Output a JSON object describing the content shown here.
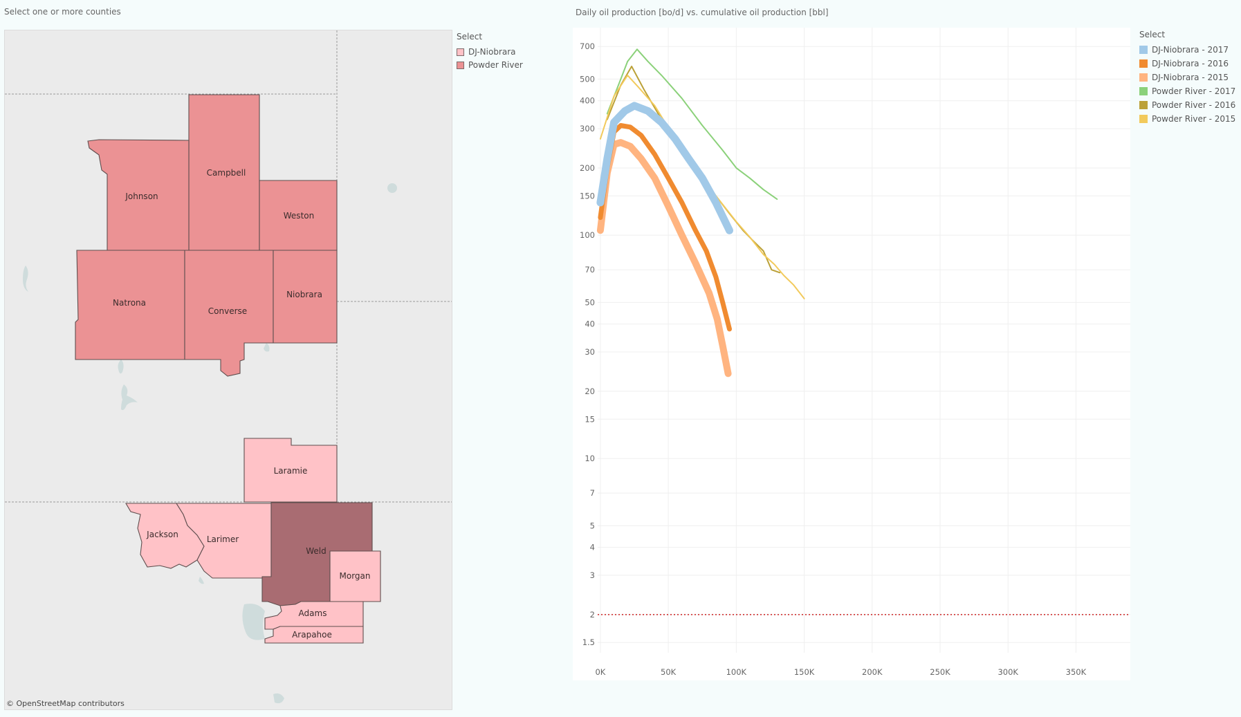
{
  "map": {
    "title": "Select one or more counties",
    "credit": "© OpenStreetMap contributors",
    "legend": {
      "title": "Select",
      "items": [
        {
          "label": "DJ-Niobrara",
          "color": "#ffc2c7"
        },
        {
          "label": "Powder River",
          "color": "#eb9294"
        }
      ]
    },
    "counties": [
      {
        "name": "Campbell",
        "basin": "Powder River"
      },
      {
        "name": "Johnson",
        "basin": "Powder River"
      },
      {
        "name": "Weston",
        "basin": "Powder River"
      },
      {
        "name": "Natrona",
        "basin": "Powder River"
      },
      {
        "name": "Converse",
        "basin": "Powder River"
      },
      {
        "name": "Niobrara",
        "basin": "Powder River"
      },
      {
        "name": "Laramie",
        "basin": "DJ-Niobrara"
      },
      {
        "name": "Jackson",
        "basin": "DJ-Niobrara"
      },
      {
        "name": "Larimer",
        "basin": "DJ-Niobrara"
      },
      {
        "name": "Weld",
        "basin": "DJ-Niobrara",
        "selected": true
      },
      {
        "name": "Morgan",
        "basin": "DJ-Niobrara"
      },
      {
        "name": "Adams",
        "basin": "DJ-Niobrara"
      },
      {
        "name": "Arapahoe",
        "basin": "DJ-Niobrara"
      }
    ],
    "colors": {
      "background": "#ebebeb",
      "selected": "#a96c72",
      "border": "#5e4e4e"
    }
  },
  "chart": {
    "title": "Daily oil production [bo/d] vs. cumulative oil production [bbl]",
    "legend_title": "Select"
  },
  "chart_data": {
    "type": "line",
    "title": "Daily oil production [bo/d] vs. cumulative oil production [bbl]",
    "xlabel": "",
    "ylabel": "",
    "x_scale": "linear",
    "y_scale": "log",
    "xlim": [
      -2000,
      390000
    ],
    "ylim": [
      1.35,
      850
    ],
    "x_ticks": [
      0,
      50000,
      100000,
      150000,
      200000,
      250000,
      300000,
      350000
    ],
    "x_tick_labels": [
      "0K",
      "50K",
      "100K",
      "150K",
      "200K",
      "250K",
      "300K",
      "350K"
    ],
    "y_ticks": [
      1.5,
      2,
      3,
      4,
      5,
      7,
      10,
      15,
      20,
      30,
      40,
      50,
      70,
      100,
      150,
      200,
      300,
      400,
      500,
      700
    ],
    "y_tick_labels": [
      "1.5",
      "2",
      "3",
      "4",
      "5",
      "7",
      "10",
      "15",
      "20",
      "30",
      "40",
      "50",
      "70",
      "100",
      "150",
      "200",
      "300",
      "400",
      "500",
      "700"
    ],
    "grid": true,
    "legend_position": "right",
    "reference_line": {
      "y": 2,
      "color": "#cc2222",
      "style": "dotted"
    },
    "series": [
      {
        "name": "DJ-Niobrara - 2017",
        "color": "#a1c9e8",
        "width": 11,
        "points": [
          [
            0,
            140
          ],
          [
            5000,
            220
          ],
          [
            10000,
            320
          ],
          [
            18000,
            360
          ],
          [
            25000,
            380
          ],
          [
            35000,
            360
          ],
          [
            45000,
            320
          ],
          [
            55000,
            270
          ],
          [
            65000,
            220
          ],
          [
            75000,
            180
          ],
          [
            85000,
            140
          ],
          [
            95000,
            105
          ]
        ]
      },
      {
        "name": "DJ-Niobrara - 2016",
        "color": "#f08b30",
        "width": 7,
        "points": [
          [
            0,
            120
          ],
          [
            5000,
            200
          ],
          [
            10000,
            290
          ],
          [
            15000,
            310
          ],
          [
            22000,
            305
          ],
          [
            30000,
            280
          ],
          [
            40000,
            230
          ],
          [
            50000,
            180
          ],
          [
            60000,
            140
          ],
          [
            70000,
            105
          ],
          [
            78000,
            85
          ],
          [
            85000,
            65
          ],
          [
            90000,
            50
          ],
          [
            95000,
            38
          ]
        ]
      },
      {
        "name": "DJ-Niobrara - 2015",
        "color": "#ffb480",
        "width": 10,
        "points": [
          [
            0,
            105
          ],
          [
            5000,
            190
          ],
          [
            10000,
            255
          ],
          [
            15000,
            260
          ],
          [
            22000,
            250
          ],
          [
            30000,
            220
          ],
          [
            40000,
            180
          ],
          [
            50000,
            135
          ],
          [
            60000,
            100
          ],
          [
            70000,
            75
          ],
          [
            80000,
            55
          ],
          [
            86000,
            42
          ],
          [
            90000,
            32
          ],
          [
            94000,
            24
          ]
        ]
      },
      {
        "name": "Powder River - 2017",
        "color": "#8bd17a",
        "width": 2,
        "points": [
          [
            5000,
            350
          ],
          [
            15000,
            500
          ],
          [
            20000,
            600
          ],
          [
            27000,
            680
          ],
          [
            35000,
            600
          ],
          [
            45000,
            520
          ],
          [
            60000,
            410
          ],
          [
            75000,
            310
          ],
          [
            90000,
            240
          ],
          [
            100000,
            200
          ],
          [
            110000,
            180
          ],
          [
            120000,
            160
          ],
          [
            130000,
            145
          ]
        ]
      },
      {
        "name": "Powder River - 2016",
        "color": "#bba138",
        "width": 2,
        "points": [
          [
            5000,
            330
          ],
          [
            15000,
            470
          ],
          [
            23000,
            570
          ],
          [
            32000,
            450
          ],
          [
            45000,
            330
          ],
          [
            60000,
            230
          ],
          [
            75000,
            185
          ],
          [
            85000,
            150
          ],
          [
            95000,
            125
          ],
          [
            105000,
            105
          ],
          [
            112000,
            95
          ],
          [
            120000,
            85
          ],
          [
            126000,
            70
          ],
          [
            132000,
            68
          ]
        ]
      },
      {
        "name": "Powder River - 2015",
        "color": "#f2ca5c",
        "width": 2,
        "points": [
          [
            0,
            270
          ],
          [
            10000,
            420
          ],
          [
            20000,
            520
          ],
          [
            28000,
            460
          ],
          [
            40000,
            380
          ],
          [
            55000,
            270
          ],
          [
            70000,
            200
          ],
          [
            85000,
            150
          ],
          [
            100000,
            115
          ],
          [
            110000,
            98
          ],
          [
            120000,
            82
          ],
          [
            128000,
            74
          ],
          [
            135000,
            66
          ],
          [
            142000,
            60
          ],
          [
            150000,
            52
          ]
        ]
      }
    ]
  }
}
